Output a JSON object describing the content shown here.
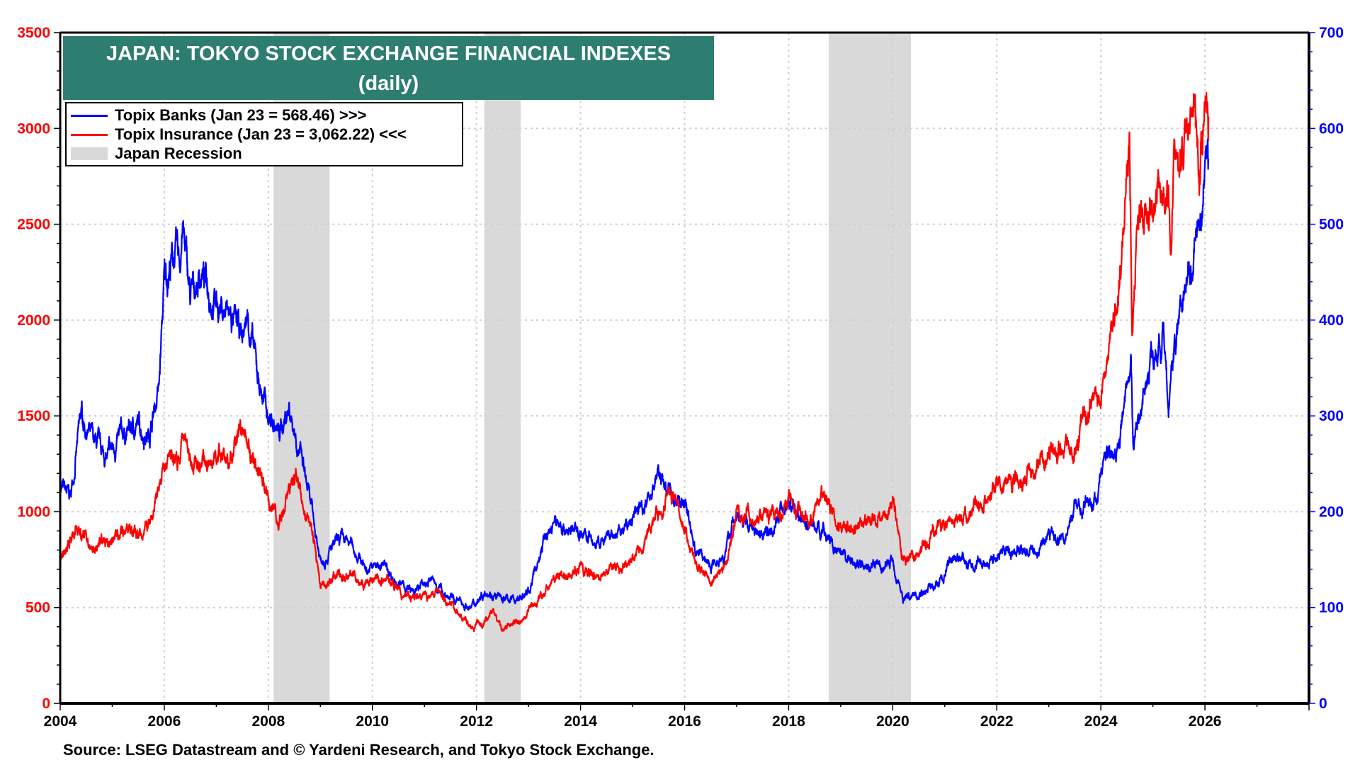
{
  "chart_data": {
    "type": "line",
    "title": "JAPAN: TOKYO STOCK EXCHANGE FINANCIAL INDEXES",
    "subtitle": "(daily)",
    "source": "Source: LSEG Datastream and © Yardeni Research, and Tokyo Stock Exchange.",
    "xlim": [
      2004,
      2028
    ],
    "x_ticks": [
      "2004",
      "2006",
      "2008",
      "2010",
      "2012",
      "2014",
      "2016",
      "2018",
      "2020",
      "2022",
      "2024",
      "2026"
    ],
    "y_left": {
      "lim": [
        0,
        3500
      ],
      "ticks": [
        "0",
        "500",
        "1000",
        "1500",
        "2000",
        "2500",
        "3000",
        "3500"
      ],
      "color": "#ff0000"
    },
    "y_right": {
      "lim": [
        0,
        700
      ],
      "ticks": [
        "0",
        "100",
        "200",
        "300",
        "400",
        "500",
        "600",
        "700"
      ],
      "color": "#0000ff"
    },
    "grid": true,
    "legend_placement": "top-left",
    "legend": [
      {
        "label": "Topix Banks (Jan 23 = 568.46) >>>",
        "color": "#0000ff"
      },
      {
        "label": "Topix Insurance (Jan 23 = 3,062.22) <<<",
        "color": "#ff0000"
      },
      {
        "label": "Japan Recession",
        "color": "#d9d9d9"
      }
    ],
    "recessions": [
      [
        2008.1,
        2009.18
      ],
      [
        2012.15,
        2012.85
      ],
      [
        2018.77,
        2020.35
      ]
    ],
    "series": [
      {
        "name": "Topix Banks",
        "axis": "right",
        "color": "#0000ff",
        "points": [
          [
            2004.0,
            225
          ],
          [
            2004.2,
            215
          ],
          [
            2004.4,
            300
          ],
          [
            2004.6,
            275
          ],
          [
            2004.9,
            255
          ],
          [
            2005.2,
            280
          ],
          [
            2005.5,
            290
          ],
          [
            2005.7,
            280
          ],
          [
            2005.9,
            330
          ],
          [
            2006.0,
            440
          ],
          [
            2006.2,
            470
          ],
          [
            2006.3,
            460
          ],
          [
            2006.35,
            500
          ],
          [
            2006.5,
            420
          ],
          [
            2006.7,
            450
          ],
          [
            2007.0,
            420
          ],
          [
            2007.3,
            400
          ],
          [
            2007.5,
            380
          ],
          [
            2007.6,
            405
          ],
          [
            2007.8,
            340
          ],
          [
            2008.0,
            300
          ],
          [
            2008.2,
            280
          ],
          [
            2008.4,
            310
          ],
          [
            2008.6,
            265
          ],
          [
            2008.8,
            210
          ],
          [
            2009.0,
            150
          ],
          [
            2009.2,
            160
          ],
          [
            2009.4,
            170
          ],
          [
            2009.6,
            165
          ],
          [
            2009.9,
            140
          ],
          [
            2010.2,
            145
          ],
          [
            2010.5,
            125
          ],
          [
            2010.8,
            115
          ],
          [
            2011.1,
            130
          ],
          [
            2011.5,
            110
          ],
          [
            2011.9,
            100
          ],
          [
            2012.2,
            120
          ],
          [
            2012.4,
            110
          ],
          [
            2012.7,
            108
          ],
          [
            2013.0,
            115
          ],
          [
            2013.3,
            170
          ],
          [
            2013.5,
            190
          ],
          [
            2013.8,
            180
          ],
          [
            2014.0,
            180
          ],
          [
            2014.3,
            165
          ],
          [
            2014.7,
            175
          ],
          [
            2014.9,
            185
          ],
          [
            2015.3,
            215
          ],
          [
            2015.5,
            240
          ],
          [
            2015.8,
            210
          ],
          [
            2016.0,
            215
          ],
          [
            2016.2,
            160
          ],
          [
            2016.5,
            145
          ],
          [
            2016.8,
            160
          ],
          [
            2016.95,
            195
          ],
          [
            2017.3,
            185
          ],
          [
            2017.6,
            180
          ],
          [
            2018.0,
            210
          ],
          [
            2018.3,
            190
          ],
          [
            2018.7,
            180
          ],
          [
            2019.0,
            150
          ],
          [
            2019.5,
            145
          ],
          [
            2019.8,
            140
          ],
          [
            2020.0,
            150
          ],
          [
            2020.2,
            110
          ],
          [
            2020.5,
            115
          ],
          [
            2020.9,
            125
          ],
          [
            2021.2,
            155
          ],
          [
            2021.6,
            140
          ],
          [
            2022.0,
            155
          ],
          [
            2022.3,
            160
          ],
          [
            2022.8,
            160
          ],
          [
            2023.0,
            175
          ],
          [
            2023.3,
            170
          ],
          [
            2023.5,
            205
          ],
          [
            2023.9,
            210
          ],
          [
            2024.1,
            260
          ],
          [
            2024.3,
            270
          ],
          [
            2024.5,
            320
          ],
          [
            2024.58,
            360
          ],
          [
            2024.62,
            270
          ],
          [
            2024.8,
            320
          ],
          [
            2025.0,
            370
          ],
          [
            2025.2,
            380
          ],
          [
            2025.3,
            300
          ],
          [
            2025.4,
            370
          ],
          [
            2025.6,
            440
          ],
          [
            2025.8,
            480
          ],
          [
            2025.95,
            520
          ],
          [
            2026.05,
            590
          ],
          [
            2026.07,
            568.46
          ]
        ]
      },
      {
        "name": "Topix Insurance",
        "axis": "left",
        "color": "#ff0000",
        "points": [
          [
            2004.0,
            750
          ],
          [
            2004.3,
            900
          ],
          [
            2004.6,
            830
          ],
          [
            2005.0,
            850
          ],
          [
            2005.3,
            900
          ],
          [
            2005.6,
            880
          ],
          [
            2005.8,
            1000
          ],
          [
            2006.0,
            1250
          ],
          [
            2006.3,
            1300
          ],
          [
            2006.4,
            1420
          ],
          [
            2006.6,
            1250
          ],
          [
            2007.0,
            1280
          ],
          [
            2007.3,
            1270
          ],
          [
            2007.5,
            1450
          ],
          [
            2007.7,
            1250
          ],
          [
            2008.0,
            1050
          ],
          [
            2008.2,
            950
          ],
          [
            2008.4,
            1100
          ],
          [
            2008.6,
            1150
          ],
          [
            2008.9,
            800
          ],
          [
            2009.0,
            600
          ],
          [
            2009.2,
            650
          ],
          [
            2009.5,
            700
          ],
          [
            2009.9,
            620
          ],
          [
            2010.3,
            650
          ],
          [
            2010.6,
            550
          ],
          [
            2011.0,
            560
          ],
          [
            2011.3,
            580
          ],
          [
            2011.6,
            500
          ],
          [
            2011.9,
            380
          ],
          [
            2012.1,
            420
          ],
          [
            2012.3,
            480
          ],
          [
            2012.5,
            380
          ],
          [
            2012.9,
            430
          ],
          [
            2013.2,
            550
          ],
          [
            2013.5,
            650
          ],
          [
            2013.8,
            680
          ],
          [
            2014.0,
            700
          ],
          [
            2014.3,
            650
          ],
          [
            2014.6,
            700
          ],
          [
            2014.9,
            720
          ],
          [
            2015.2,
            850
          ],
          [
            2015.5,
            1000
          ],
          [
            2015.7,
            1100
          ],
          [
            2015.9,
            1000
          ],
          [
            2016.2,
            750
          ],
          [
            2016.5,
            620
          ],
          [
            2016.8,
            750
          ],
          [
            2017.0,
            1000
          ],
          [
            2017.3,
            970
          ],
          [
            2017.7,
            1000
          ],
          [
            2018.0,
            1050
          ],
          [
            2018.3,
            950
          ],
          [
            2018.7,
            1080
          ],
          [
            2019.0,
            900
          ],
          [
            2019.5,
            950
          ],
          [
            2020.0,
            1030
          ],
          [
            2020.2,
            750
          ],
          [
            2020.5,
            800
          ],
          [
            2021.0,
            950
          ],
          [
            2021.5,
            1000
          ],
          [
            2022.0,
            1150
          ],
          [
            2022.4,
            1200
          ],
          [
            2022.8,
            1250
          ],
          [
            2023.2,
            1350
          ],
          [
            2023.5,
            1300
          ],
          [
            2023.8,
            1600
          ],
          [
            2024.0,
            1600
          ],
          [
            2024.2,
            1900
          ],
          [
            2024.4,
            2200
          ],
          [
            2024.55,
            2900
          ],
          [
            2024.6,
            1950
          ],
          [
            2024.7,
            2450
          ],
          [
            2024.9,
            2600
          ],
          [
            2025.1,
            2650
          ],
          [
            2025.3,
            2700
          ],
          [
            2025.35,
            2250
          ],
          [
            2025.4,
            2800
          ],
          [
            2025.6,
            2900
          ],
          [
            2025.8,
            3100
          ],
          [
            2025.9,
            2800
          ],
          [
            2026.0,
            3100
          ],
          [
            2026.05,
            3250
          ],
          [
            2026.07,
            3062.22
          ]
        ]
      }
    ]
  }
}
